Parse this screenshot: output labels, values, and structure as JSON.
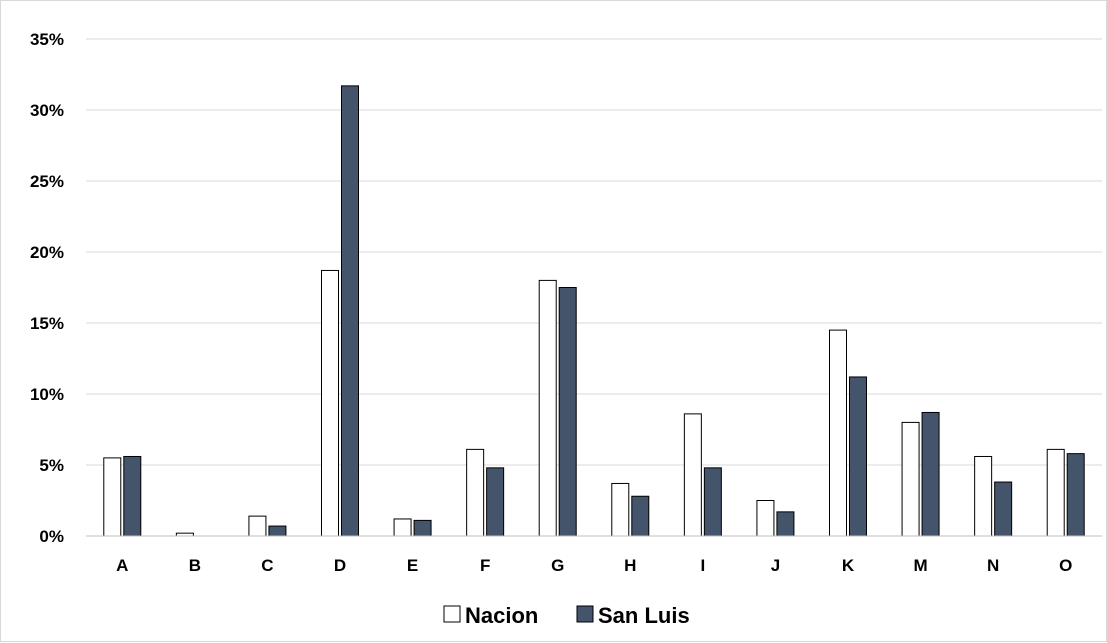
{
  "chart_data": {
    "type": "bar",
    "categories": [
      "A",
      "B",
      "C",
      "D",
      "E",
      "F",
      "G",
      "H",
      "I",
      "J",
      "K",
      "M",
      "N",
      "O"
    ],
    "series": [
      {
        "name": "Nacion",
        "color": "#ffffff",
        "values": [
          5.5,
          0.2,
          1.4,
          18.7,
          1.2,
          6.1,
          18.0,
          3.7,
          8.6,
          2.5,
          14.5,
          8.0,
          5.6,
          6.1
        ]
      },
      {
        "name": "San Luis",
        "color": "#44546a",
        "values": [
          5.6,
          0.0,
          0.7,
          31.7,
          1.1,
          4.8,
          17.5,
          2.8,
          4.8,
          1.7,
          11.2,
          8.7,
          3.8,
          5.8
        ]
      }
    ],
    "yticks": [
      "0%",
      "5%",
      "10%",
      "15%",
      "20%",
      "25%",
      "30%",
      "35%"
    ],
    "ylim": [
      0,
      35
    ],
    "grid": true,
    "legend_position": "bottom",
    "title": "",
    "xlabel": "",
    "ylabel": ""
  }
}
